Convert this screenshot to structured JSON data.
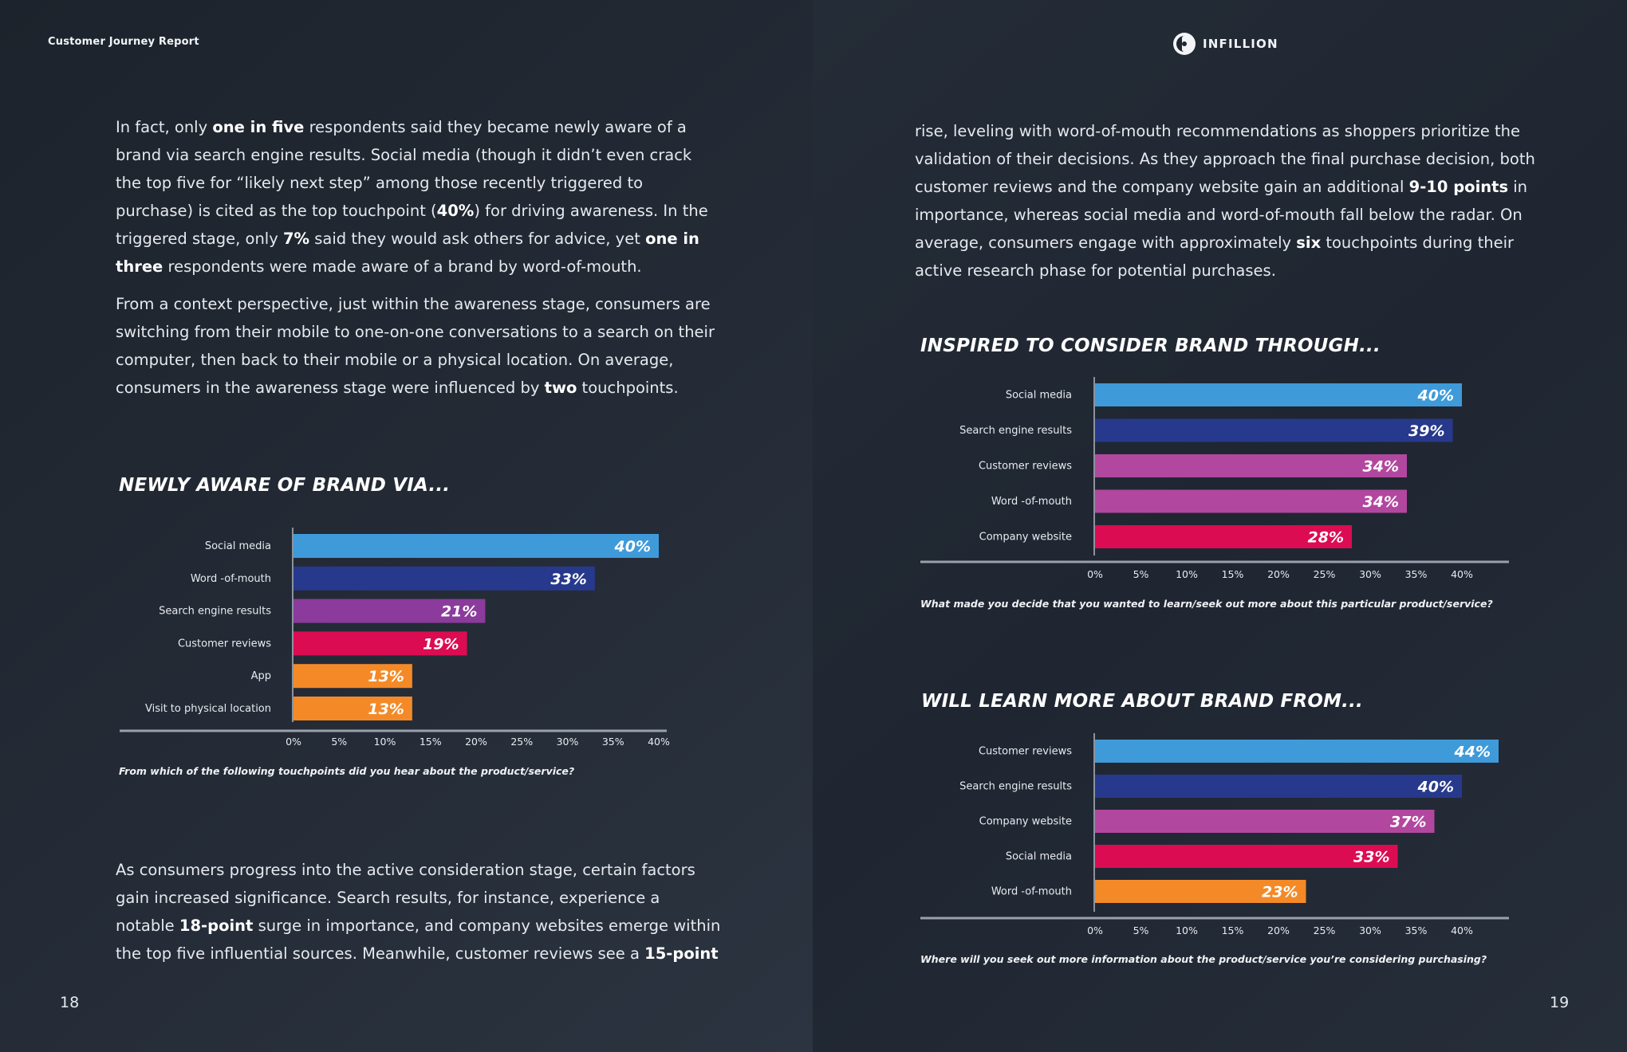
{
  "header": {
    "report_title": "Customer Journey Report",
    "brand_name": "INFILLION"
  },
  "colors": {
    "blue": "#3f9ad9",
    "navy": "#27398c",
    "purple": "#8b3b9c",
    "magenta": "#b2479f",
    "crimson": "#dc0c52",
    "orange": "#f48a27"
  },
  "left_page": {
    "para1": [
      {
        "t": "In fact, only "
      },
      {
        "t": "one in five",
        "b": true
      },
      {
        "t": " respondents said they became newly aware of a brand via search engine results. Social media (though it didn’t even crack the top five for “likely next step” among those recently triggered to purchase) is cited as the top touchpoint ("
      },
      {
        "t": "40%",
        "b": true
      },
      {
        "t": ") for driving awareness. In the triggered stage, only "
      },
      {
        "t": "7%",
        "b": true
      },
      {
        "t": " said they would ask others for advice, yet "
      },
      {
        "t": "one in three",
        "b": true
      },
      {
        "t": " respondents were made aware of a brand by word-of-mouth."
      }
    ],
    "para2": [
      {
        "t": "From a context perspective, just within the awareness stage, consumers are switching from their mobile to one-on-one conversations to a search on their computer, then back to their mobile or a physical location. On average, consumers in the awareness stage were influenced by "
      },
      {
        "t": "two",
        "b": true
      },
      {
        "t": " touchpoints."
      }
    ],
    "para3": [
      {
        "t": "As consumers progress into the active consideration stage, certain factors gain increased significance. Search results, for instance, experience a notable "
      },
      {
        "t": "18-point",
        "b": true
      },
      {
        "t": " surge in importance, and company websites emerge within the top five influential sources. Meanwhile, customer reviews see a "
      },
      {
        "t": "15-point",
        "b": true
      }
    ],
    "page_number": "18"
  },
  "right_page": {
    "para1": [
      {
        "t": "rise, leveling with word-of-mouth recommendations as shoppers prioritize the validation of their decisions. As they approach the final purchase decision, both customer reviews and the company website gain an additional "
      },
      {
        "t": "9-10 points",
        "b": true
      },
      {
        "t": " in importance, whereas social media and word-of-mouth fall below the radar. On average, consumers engage with approximately "
      },
      {
        "t": "six",
        "b": true
      },
      {
        "t": " touchpoints during their active research phase for potential purchases."
      }
    ],
    "page_number": "19"
  },
  "chart_data": [
    {
      "type": "bar",
      "orientation": "horizontal",
      "title": "NEWLY AWARE OF BRAND VIA...",
      "question": "From which of the following touchpoints did you hear about the product/service?",
      "categories": [
        "Social media",
        "Word -of-mouth",
        "Search engine results",
        "Customer reviews",
        "App",
        "Visit to physical location"
      ],
      "values": [
        40,
        33,
        21,
        19,
        13,
        13
      ],
      "value_labels": [
        "40%",
        "33%",
        "21%",
        "19%",
        "13%",
        "13%"
      ],
      "bar_colors": [
        "#3f9ad9",
        "#27398c",
        "#8b3b9c",
        "#dc0c52",
        "#f48a27",
        "#f48a27"
      ],
      "xticks": [
        "0%",
        "5%",
        "10%",
        "15%",
        "20%",
        "25%",
        "30%",
        "35%",
        "40%"
      ],
      "xlim": [
        0,
        40
      ]
    },
    {
      "type": "bar",
      "orientation": "horizontal",
      "title": "INSPIRED TO CONSIDER BRAND THROUGH...",
      "question": "What made you decide that you wanted to learn/seek out more about this particular product/service?",
      "categories": [
        "Social media",
        "Search engine results",
        "Customer reviews",
        "Word -of-mouth",
        "Company website"
      ],
      "values": [
        40,
        39,
        34,
        34,
        28
      ],
      "value_labels": [
        "40%",
        "39%",
        "34%",
        "34%",
        "28%"
      ],
      "bar_colors": [
        "#3f9ad9",
        "#27398c",
        "#b2479f",
        "#b2479f",
        "#dc0c52"
      ],
      "xticks": [
        "0%",
        "5%",
        "10%",
        "15%",
        "20%",
        "25%",
        "30%",
        "35%",
        "40%"
      ],
      "xlim": [
        0,
        40
      ]
    },
    {
      "type": "bar",
      "orientation": "horizontal",
      "title": "WILL LEARN MORE ABOUT BRAND FROM...",
      "question": "Where will you seek out more information about the product/service you’re considering purchasing?",
      "categories": [
        "Customer reviews",
        "Search engine results",
        "Company website",
        "Social media",
        "Word -of-mouth"
      ],
      "values": [
        44,
        40,
        37,
        33,
        23
      ],
      "value_labels": [
        "44%",
        "40%",
        "37%",
        "33%",
        "23%"
      ],
      "bar_colors": [
        "#3f9ad9",
        "#27398c",
        "#b2479f",
        "#dc0c52",
        "#f48a27"
      ],
      "xticks": [
        "0%",
        "5%",
        "10%",
        "15%",
        "20%",
        "25%",
        "30%",
        "35%",
        "40%"
      ],
      "xlim": [
        0,
        40
      ]
    }
  ]
}
